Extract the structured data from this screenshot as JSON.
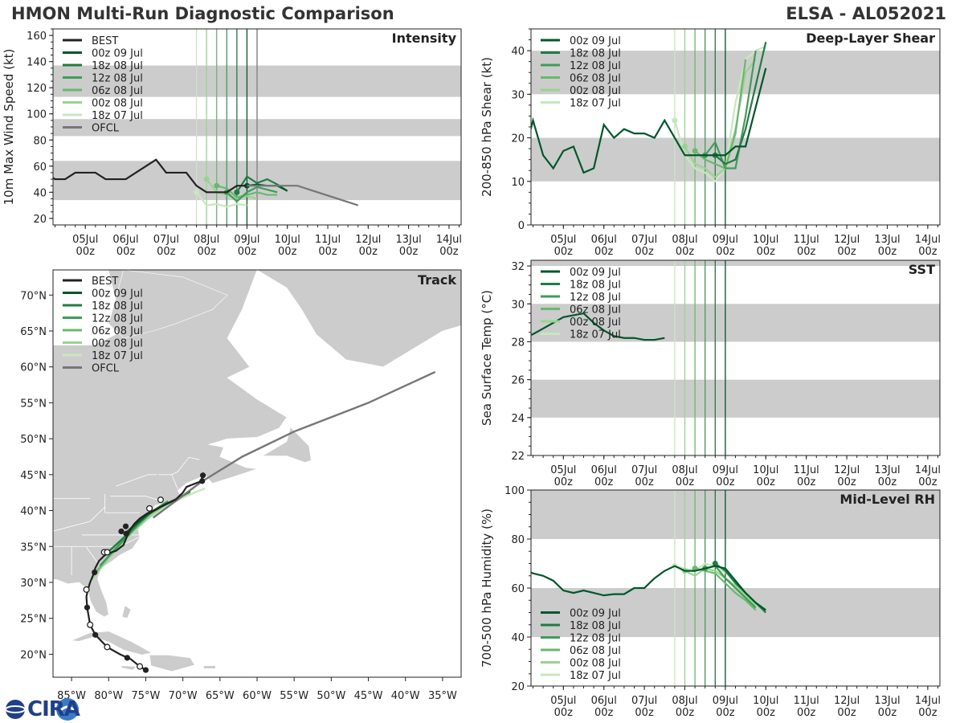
{
  "header": {
    "title": "HMON Multi-Run Diagnostic Comparison",
    "storm": "ELSA - AL052021"
  },
  "logo_text": "CIRA",
  "time_axis": {
    "tick_labels": [
      "05Jul\n00z",
      "06Jul\n00z",
      "07Jul\n00z",
      "08Jul\n00z",
      "09Jul\n00z",
      "10Jul\n00z",
      "11Jul\n00z",
      "12Jul\n00z",
      "13Jul\n00z",
      "14Jul\n00z"
    ],
    "range_days": [
      4.2,
      14.3
    ]
  },
  "runs": [
    {
      "label": "00z 09 Jul",
      "init_day": 9.0,
      "color": "#00582b"
    },
    {
      "label": "18z 08 Jul",
      "init_day": 8.75,
      "color": "#1f7d42"
    },
    {
      "label": "12z 08 Jul",
      "init_day": 8.5,
      "color": "#3e9d58"
    },
    {
      "label": "06z 08 Jul",
      "init_day": 8.25,
      "color": "#68b96e"
    },
    {
      "label": "00z 08 Jul",
      "init_day": 8.0,
      "color": "#98d48f"
    },
    {
      "label": "18z 07 Jul",
      "init_day": 7.75,
      "color": "#c6e8bd"
    }
  ],
  "best_label": "BEST",
  "ofcl_label": "OFCL",
  "chart_data": [
    {
      "type": "line",
      "panel": "Intensity",
      "ylabel": "10m Max Wind Speed (kt)",
      "ylim": [
        15,
        165
      ],
      "yticks": [
        20,
        40,
        60,
        80,
        100,
        120,
        140,
        160
      ],
      "bands": [
        [
          34,
          64
        ],
        [
          83,
          96
        ],
        [
          113,
          137
        ]
      ],
      "best": {
        "x": [
          4.0,
          4.25,
          4.5,
          4.75,
          5.0,
          5.25,
          5.5,
          5.75,
          6.0,
          6.25,
          6.5,
          6.75,
          7.0,
          7.25,
          7.5,
          7.75,
          8.0,
          8.25,
          8.5,
          8.75,
          9.0
        ],
        "y": [
          55,
          50,
          50,
          55,
          55,
          55,
          50,
          50,
          50,
          55,
          60,
          65,
          55,
          55,
          55,
          45,
          40,
          40,
          40,
          45,
          45
        ]
      },
      "ofcl": {
        "x": [
          9.0,
          9.5,
          10.25,
          11.75
        ],
        "y": [
          45,
          45,
          45,
          30
        ]
      },
      "series": [
        {
          "run": "00z 09 Jul",
          "x": [
            9.0,
            9.25,
            9.5,
            9.75,
            10.0
          ],
          "y": [
            45,
            46,
            45,
            45,
            41
          ]
        },
        {
          "run": "18z 08 Jul",
          "x": [
            8.75,
            9.0,
            9.25,
            9.5,
            9.75,
            10.0
          ],
          "y": [
            40,
            52,
            47,
            50,
            46,
            41
          ]
        },
        {
          "run": "12z 08 Jul",
          "x": [
            8.5,
            8.75,
            9.0,
            9.25,
            9.5,
            9.75
          ],
          "y": [
            40,
            33,
            40,
            44,
            42,
            40
          ]
        },
        {
          "run": "06z 08 Jul",
          "x": [
            8.25,
            8.5,
            8.75,
            9.0,
            9.25,
            9.5,
            9.75
          ],
          "y": [
            45,
            43,
            36,
            38,
            40,
            38,
            38
          ]
        },
        {
          "run": "00z 08 Jul",
          "x": [
            8.0,
            8.25,
            8.5,
            8.75,
            9.0,
            9.25
          ],
          "y": [
            50,
            40,
            38,
            35,
            37,
            35
          ]
        },
        {
          "run": "18z 07 Jul",
          "x": [
            7.75,
            8.0,
            8.25,
            8.5,
            8.75,
            9.0
          ],
          "y": [
            40,
            30,
            31,
            29,
            31,
            30
          ]
        }
      ]
    },
    {
      "type": "line",
      "panel": "Deep-Layer Shear",
      "ylabel": "200-850 hPa Shear (kt)",
      "ylim": [
        0,
        45
      ],
      "yticks": [
        0,
        10,
        20,
        30,
        40
      ],
      "bands": [
        [
          10,
          20
        ],
        [
          30,
          40
        ]
      ],
      "series": [
        {
          "run": "00z 09 Jul",
          "x": [
            4.0,
            4.25,
            4.5,
            4.75,
            5.0,
            5.25,
            5.5,
            5.75,
            6.0,
            6.25,
            6.5,
            6.75,
            7.0,
            7.25,
            7.5,
            7.75,
            8.0,
            8.25,
            8.5,
            8.75,
            9.0,
            9.25,
            9.5,
            10.0
          ],
          "y": [
            15,
            24,
            16,
            13,
            17,
            18,
            12,
            13,
            23,
            20,
            22,
            21,
            21,
            20,
            24,
            20,
            16,
            16,
            16,
            16,
            16,
            18,
            18,
            36
          ]
        },
        {
          "run": "18z 08 Jul",
          "x": [
            8.75,
            9.0,
            9.25,
            9.5,
            10.0
          ],
          "y": [
            16,
            14,
            15,
            22,
            42
          ]
        },
        {
          "run": "12z 08 Jul",
          "x": [
            8.5,
            8.75,
            9.0,
            9.25,
            9.5,
            9.75
          ],
          "y": [
            16,
            19,
            13,
            13,
            25,
            40
          ]
        },
        {
          "run": "06z 08 Jul",
          "x": [
            8.25,
            8.5,
            8.75,
            9.0,
            9.25,
            9.5
          ],
          "y": [
            17,
            15,
            14,
            13,
            21,
            38
          ]
        },
        {
          "run": "00z 08 Jul",
          "x": [
            8.0,
            8.25,
            8.5,
            8.75,
            9.0,
            9.25,
            9.5,
            9.75
          ],
          "y": [
            18,
            14,
            13,
            11,
            13,
            22,
            35,
            38
          ]
        },
        {
          "run": "18z 07 Jul",
          "x": [
            7.75,
            8.0,
            8.25,
            8.5,
            8.75,
            9.0,
            9.25,
            9.5,
            9.75,
            10.0
          ],
          "y": [
            24,
            16,
            13,
            12,
            10,
            13,
            28,
            38,
            40,
            41
          ]
        }
      ]
    },
    {
      "type": "line",
      "panel": "SST",
      "ylabel": "Sea Surface Temp (°C)",
      "ylim": [
        22,
        32.3
      ],
      "yticks": [
        22,
        24,
        26,
        28,
        30,
        32
      ],
      "bands": [
        [
          24,
          26
        ],
        [
          28,
          30
        ],
        [
          32,
          32.3
        ]
      ],
      "series": [
        {
          "run": "00z 09 Jul",
          "x": [
            4.0,
            4.25,
            4.5,
            4.75,
            5.0,
            5.25,
            5.5,
            5.75,
            6.0,
            6.25,
            6.5,
            6.75,
            7.0,
            7.25,
            7.5
          ],
          "y": [
            28.2,
            28.4,
            28.7,
            29.0,
            29.3,
            29.4,
            29.5,
            29.0,
            28.6,
            28.3,
            28.2,
            28.2,
            28.1,
            28.1,
            28.2
          ]
        }
      ]
    },
    {
      "type": "line",
      "panel": "Mid-Level RH",
      "ylabel": "700-500 hPa Humidity (%)",
      "ylim": [
        20,
        100
      ],
      "yticks": [
        20,
        40,
        60,
        80,
        100
      ],
      "bands": [
        [
          40,
          60
        ],
        [
          80,
          100
        ]
      ],
      "series": [
        {
          "run": "00z 09 Jul",
          "x": [
            4.0,
            4.25,
            4.5,
            4.75,
            5.0,
            5.25,
            5.5,
            5.75,
            6.0,
            6.25,
            6.5,
            6.75,
            7.0,
            7.25,
            7.5,
            7.75,
            8.0,
            8.25,
            8.5,
            8.75,
            9.0,
            9.25,
            9.5,
            9.75,
            10.0
          ],
          "y": [
            68,
            66,
            65,
            63,
            59,
            58,
            59,
            58,
            57,
            57.5,
            57.5,
            60,
            60,
            64,
            67,
            69,
            67,
            67,
            68,
            69,
            68,
            63,
            58,
            54,
            51
          ]
        },
        {
          "run": "18z 08 Jul",
          "x": [
            8.75,
            9.0,
            9.25,
            9.5,
            9.75,
            10.0
          ],
          "y": [
            70,
            67,
            62,
            58,
            54,
            50
          ]
        },
        {
          "run": "12z 08 Jul",
          "x": [
            8.5,
            8.75,
            9.0,
            9.25,
            9.5,
            9.75
          ],
          "y": [
            68,
            69,
            64,
            60,
            56,
            52
          ]
        },
        {
          "run": "06z 08 Jul",
          "x": [
            8.25,
            8.5,
            8.75,
            9.0,
            9.25,
            9.5,
            9.75
          ],
          "y": [
            68,
            67,
            66,
            62,
            58,
            55,
            51
          ]
        },
        {
          "run": "00z 08 Jul",
          "x": [
            8.0,
            8.25,
            8.5,
            8.75,
            9.0,
            9.25,
            9.5,
            9.75
          ],
          "y": [
            67,
            65,
            68,
            67,
            64,
            61,
            57,
            53
          ]
        },
        {
          "run": "18z 07 Jul",
          "x": [
            7.75,
            8.0,
            8.25,
            8.5,
            8.75,
            9.0
          ],
          "y": [
            69,
            68,
            67,
            70,
            69,
            66
          ]
        }
      ]
    },
    {
      "type": "scatter",
      "panel": "Track",
      "xlim": [
        -87.5,
        -32.5
      ],
      "ylim": [
        16.8,
        73.5
      ],
      "xticks": [
        -85,
        -80,
        -75,
        -70,
        -65,
        -60,
        -55,
        -50,
        -45,
        -40,
        -35
      ],
      "xtick_labels": [
        "85°W",
        "80°W",
        "75°W",
        "70°W",
        "65°W",
        "60°W",
        "55°W",
        "50°W",
        "45°W",
        "40°W",
        "35°W"
      ],
      "yticks": [
        20,
        25,
        30,
        35,
        40,
        45,
        50,
        55,
        60,
        65,
        70
      ],
      "ytick_labels": [
        "20°N",
        "25°N",
        "30°N",
        "35°N",
        "40°N",
        "45°N",
        "50°N",
        "55°N",
        "60°N",
        "65°N",
        "70°N"
      ],
      "best": {
        "lon": [
          -75.0,
          -75.8,
          -77.0,
          -78.5,
          -80.2,
          -81.8,
          -82.5,
          -82.9,
          -83.0,
          -82.8,
          -82.5,
          -82.1,
          -81.8,
          -81.3,
          -80.5,
          -79.6,
          -79.0,
          -78.0,
          -77.5,
          -77.0,
          -76.5,
          -75.8,
          -74.8,
          -73.5,
          -72.5,
          -71.0,
          -70.0,
          -69.5,
          -67.5,
          -67.4
        ],
        "lat": [
          17.8,
          18.3,
          19.3,
          20.0,
          21.0,
          22.7,
          24.1,
          26.5,
          28.0,
          29.0,
          30.0,
          31.0,
          32.0,
          33.0,
          33.8,
          34.2,
          34.4,
          35.2,
          36.5,
          37.5,
          38.2,
          38.9,
          39.6,
          40.2,
          40.8,
          41.5,
          42.5,
          43.3,
          44.1,
          44.8
        ],
        "open_markers": [
          [
            -75.8,
            18.3
          ],
          [
            -80.2,
            21.0
          ],
          [
            -82.5,
            24.1
          ],
          [
            -83.0,
            29.0
          ],
          [
            -80.6,
            34.2
          ],
          [
            -80.2,
            34.2
          ],
          [
            -74.5,
            40.3
          ],
          [
            -73.0,
            41.5
          ]
        ],
        "filled_markers": [
          [
            -75.0,
            17.8
          ],
          [
            -77.5,
            19.5
          ],
          [
            -81.8,
            22.7
          ],
          [
            -82.9,
            26.5
          ],
          [
            -81.9,
            31.4
          ],
          [
            -78.3,
            37.1
          ],
          [
            -77.6,
            36.8
          ],
          [
            -77.7,
            37.8
          ],
          [
            -67.3,
            44.9
          ],
          [
            -67.4,
            44.1
          ]
        ]
      },
      "ofcl": {
        "lon": [
          -74.0,
          -67.5,
          -62.0,
          -55.0,
          -45.0,
          -36.0
        ],
        "lat": [
          39.0,
          44.0,
          47.5,
          51.0,
          55.0,
          59.3
        ]
      },
      "series": [
        {
          "run": "00z 09 Jul",
          "lon": [
            -78.0,
            -76.5,
            -75.0,
            -73.0,
            -71.0,
            -69.0
          ],
          "lat": [
            36.6,
            38.0,
            39.3,
            40.5,
            41.5,
            42.7
          ]
        },
        {
          "run": "18z 08 Jul",
          "lon": [
            -80.0,
            -78.0,
            -76.2,
            -74.5,
            -72.5,
            -70.5
          ],
          "lat": [
            34.3,
            36.2,
            38.1,
            39.6,
            40.8,
            41.8
          ]
        },
        {
          "run": "12z 08 Jul",
          "lon": [
            -81.2,
            -79.5,
            -77.6,
            -75.8,
            -74.0,
            -72.0
          ],
          "lat": [
            32.3,
            34.2,
            36.3,
            38.3,
            40.0,
            41.3
          ]
        },
        {
          "run": "06z 08 Jul",
          "lon": [
            -82.0,
            -80.3,
            -78.4,
            -76.4,
            -74.5,
            -72.5
          ],
          "lat": [
            31.0,
            33.3,
            35.5,
            37.6,
            39.5,
            41.0
          ]
        },
        {
          "run": "00z 08 Jul",
          "lon": [
            -82.3,
            -80.6,
            -78.6,
            -76.6,
            -74.5,
            -72.0,
            -69.0
          ],
          "lat": [
            30.4,
            32.6,
            35.0,
            37.2,
            39.2,
            41.0,
            42.5
          ]
        },
        {
          "run": "18z 07 Jul",
          "lon": [
            -82.6,
            -81.0,
            -79.0,
            -77.0,
            -74.8,
            -72.5,
            -70.0,
            -67.0
          ],
          "lat": [
            29.8,
            32.2,
            34.5,
            36.7,
            38.8,
            40.4,
            41.8,
            43.1
          ]
        }
      ]
    }
  ]
}
